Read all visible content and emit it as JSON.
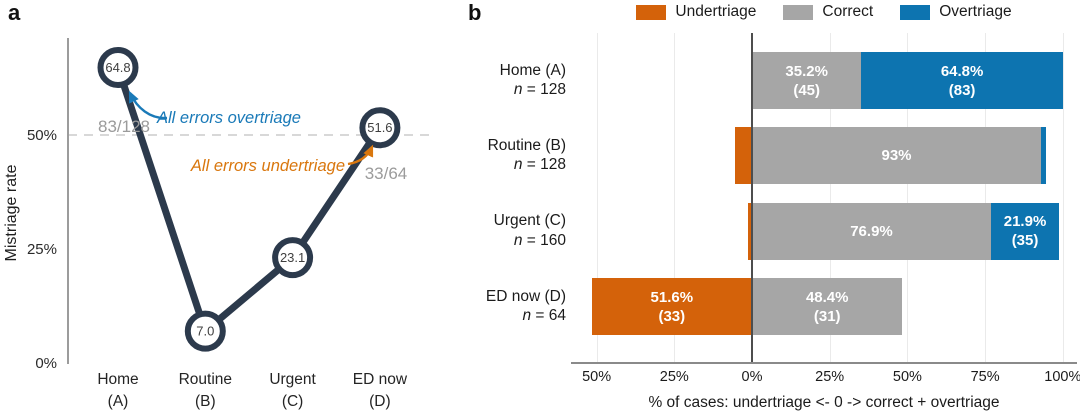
{
  "chart_data": [
    {
      "type": "line",
      "panel": "a",
      "title": "",
      "xlabel": "",
      "ylabel": "Mistriage rate",
      "ylim": [
        0,
        72
      ],
      "yticks": [
        {
          "label": "50%",
          "value": 50
        },
        {
          "label": "25%",
          "value": 25
        },
        {
          "label": "0%",
          "value": 0
        }
      ],
      "gridlines": [
        {
          "value": 50,
          "style": "dashed"
        }
      ],
      "categories": [
        {
          "line1": "Home",
          "line2": "(A)"
        },
        {
          "line1": "Routine",
          "line2": "(B)"
        },
        {
          "line1": "Urgent",
          "line2": "(C)"
        },
        {
          "line1": "ED now",
          "line2": "(D)"
        }
      ],
      "values": [
        64.8,
        7.0,
        23.1,
        51.6
      ],
      "point_labels": [
        "64.8",
        "7.0",
        "23.1",
        "51.6"
      ],
      "line_color": "#2c3a4c",
      "annotations": [
        {
          "id": "overtriage-note",
          "text": "All errors overtriage",
          "color": "#1a7ab8",
          "italic": true,
          "arrow": true
        },
        {
          "id": "home-fraction",
          "text": "83/128",
          "color": "#9b9b9b",
          "italic": false,
          "arrow": false
        },
        {
          "id": "undertriage-note",
          "text": "All errors undertriage",
          "color": "#d9770e",
          "italic": true,
          "arrow": true
        },
        {
          "id": "ednow-fraction",
          "text": "33/64",
          "color": "#9b9b9b",
          "italic": false,
          "arrow": false
        }
      ]
    },
    {
      "type": "diverging-bar",
      "panel": "b",
      "xlabel": "% of cases: undertriage <- 0 -> correct + overtriage",
      "xlim": [
        -58,
        104
      ],
      "grid": true,
      "legend_position": "top",
      "legend": [
        {
          "label": "Undertriage",
          "color": "#d4620a"
        },
        {
          "label": "Correct",
          "color": "#a6a6a6"
        },
        {
          "label": "Overtriage",
          "color": "#0d74b0"
        }
      ],
      "xticks": [
        {
          "label": "50%",
          "value": -50
        },
        {
          "label": "25%",
          "value": -25
        },
        {
          "label": "0%",
          "value": 0
        },
        {
          "label": "25%",
          "value": 25
        },
        {
          "label": "50%",
          "value": 50
        },
        {
          "label": "75%",
          "value": 75
        },
        {
          "label": "100%",
          "value": 100
        }
      ],
      "rows": [
        {
          "label": "Home (A)",
          "n_label": "n = 128",
          "segments": [
            {
              "kind": "undertriage",
              "pct": 0,
              "label_pct": "",
              "label_count": ""
            },
            {
              "kind": "correct",
              "pct": 35.2,
              "label_pct": "35.2%",
              "label_count": "(45)"
            },
            {
              "kind": "overtriage",
              "pct": 64.8,
              "label_pct": "64.8%",
              "label_count": "(83)"
            }
          ]
        },
        {
          "label": "Routine (B)",
          "n_label": "n = 128",
          "segments": [
            {
              "kind": "undertriage",
              "pct": 5.5,
              "label_pct": "",
              "label_count": ""
            },
            {
              "kind": "correct",
              "pct": 93,
              "label_pct": "93%",
              "label_count": ""
            },
            {
              "kind": "overtriage",
              "pct": 1.6,
              "label_pct": "",
              "label_count": ""
            }
          ]
        },
        {
          "label": "Urgent (C)",
          "n_label": "n = 160",
          "segments": [
            {
              "kind": "undertriage",
              "pct": 1.3,
              "label_pct": "",
              "label_count": ""
            },
            {
              "kind": "correct",
              "pct": 76.9,
              "label_pct": "76.9%",
              "label_count": ""
            },
            {
              "kind": "overtriage",
              "pct": 21.9,
              "label_pct": "21.9%",
              "label_count": "(35)"
            }
          ]
        },
        {
          "label": "ED now (D)",
          "n_label": "n = 64",
          "segments": [
            {
              "kind": "undertriage",
              "pct": 51.6,
              "label_pct": "51.6%",
              "label_count": "(33)"
            },
            {
              "kind": "correct",
              "pct": 48.4,
              "label_pct": "48.4%",
              "label_count": "(31)"
            },
            {
              "kind": "overtriage",
              "pct": 0,
              "label_pct": "",
              "label_count": ""
            }
          ]
        }
      ]
    }
  ]
}
